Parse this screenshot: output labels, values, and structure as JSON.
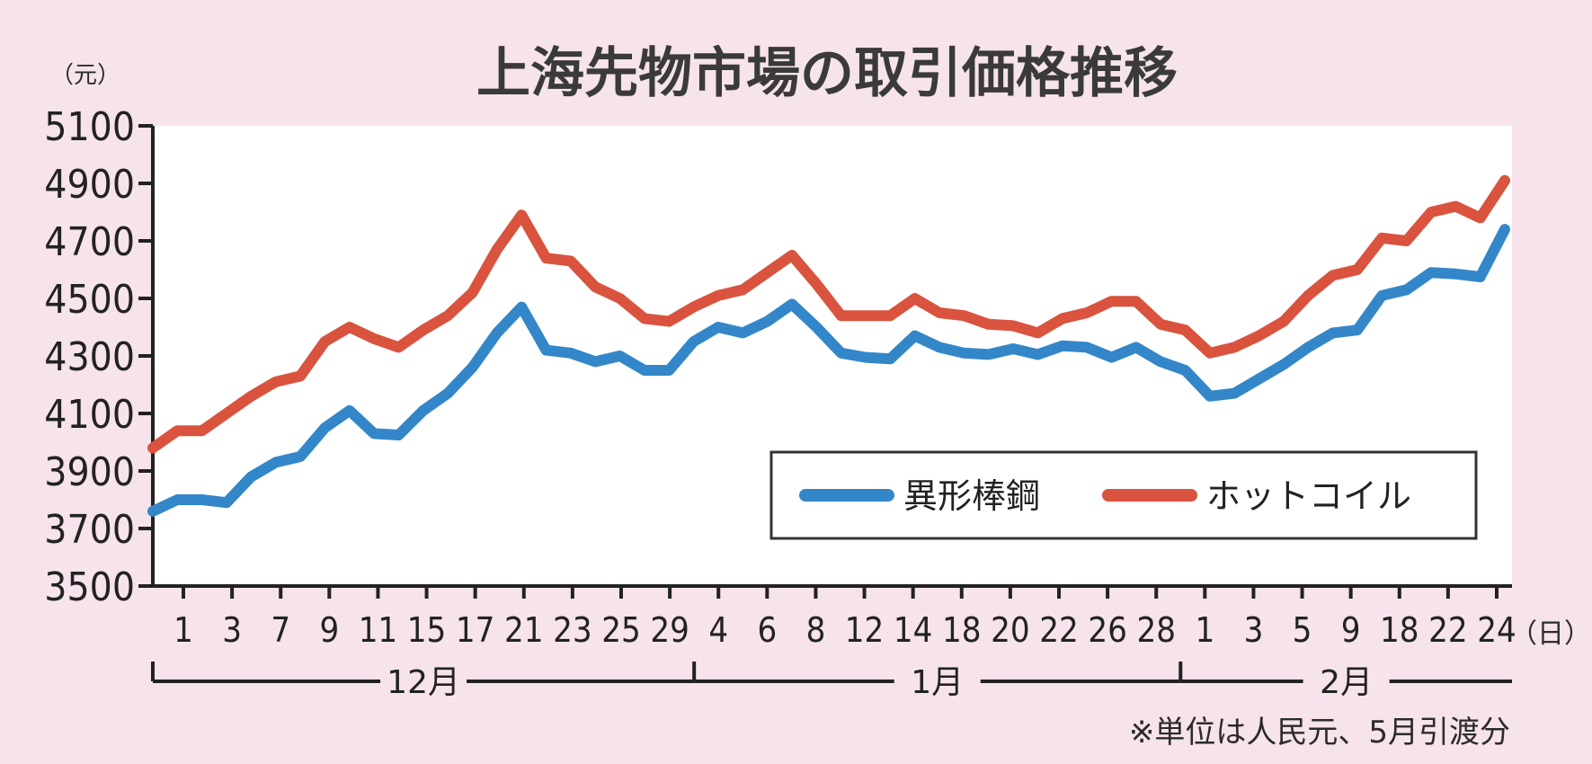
{
  "title": "上海先物市場の取引価格推移",
  "y_unit": "（元）",
  "x_unit": "（日）",
  "note": "※単位は人民元、5月引渡分",
  "colors": {
    "background": "#f6e3ec",
    "plot_background": "#ffffff",
    "series_1": "#3387c8",
    "series_2": "#d9533e",
    "axis": "#222222"
  },
  "legend": {
    "items": [
      "異形棒鋼",
      "ホットコイル"
    ]
  },
  "chart_data": {
    "type": "line",
    "title": "上海先物市場の取引価格推移",
    "ylabel": "（元）",
    "xlabel": "（日）",
    "ylim": [
      3500,
      5100
    ],
    "y_ticks": [
      3500,
      3700,
      3900,
      4100,
      4300,
      4500,
      4700,
      4900,
      5100
    ],
    "x_tick_labels": [
      "1",
      "3",
      "7",
      "9",
      "11",
      "15",
      "17",
      "21",
      "23",
      "25",
      "29",
      "4",
      "6",
      "8",
      "12",
      "14",
      "18",
      "20",
      "22",
      "26",
      "28",
      "1",
      "3",
      "5",
      "9",
      "18",
      "22",
      "24"
    ],
    "months": [
      {
        "label": "12月",
        "ticks": [
          "1",
          "3",
          "7",
          "9",
          "11",
          "15",
          "17",
          "21",
          "23",
          "25",
          "29"
        ]
      },
      {
        "label": "1月",
        "ticks": [
          "4",
          "6",
          "8",
          "12",
          "14",
          "18",
          "20",
          "22",
          "26",
          "28"
        ]
      },
      {
        "label": "2月",
        "ticks": [
          "1",
          "3",
          "5",
          "9",
          "18",
          "22",
          "24"
        ]
      }
    ],
    "legend_position": "bottom-right",
    "grid": false,
    "series": [
      {
        "name": "異形棒鋼",
        "color": "#3387c8",
        "values": [
          3760,
          3800,
          3800,
          3790,
          3880,
          3930,
          3950,
          4050,
          4110,
          4030,
          4025,
          4110,
          4170,
          4260,
          4380,
          4470,
          4320,
          4310,
          4280,
          4300,
          4250,
          4250,
          4350,
          4400,
          4380,
          4420,
          4480,
          4400,
          4310,
          4295,
          4290,
          4370,
          4330,
          4310,
          4305,
          4325,
          4305,
          4335,
          4330,
          4295,
          4330,
          4280,
          4250,
          4160,
          4170,
          4220,
          4270,
          4330,
          4380,
          4390,
          4510,
          4530,
          4590,
          4585,
          4575,
          4740
        ]
      },
      {
        "name": "ホットコイル",
        "color": "#d9533e",
        "values": [
          3980,
          4040,
          4040,
          4100,
          4160,
          4210,
          4230,
          4350,
          4400,
          4360,
          4330,
          4390,
          4440,
          4520,
          4670,
          4790,
          4640,
          4630,
          4540,
          4500,
          4430,
          4420,
          4470,
          4510,
          4530,
          4590,
          4650,
          4550,
          4440,
          4440,
          4440,
          4500,
          4450,
          4440,
          4410,
          4405,
          4380,
          4430,
          4450,
          4490,
          4490,
          4410,
          4390,
          4310,
          4330,
          4370,
          4420,
          4510,
          4580,
          4600,
          4710,
          4700,
          4800,
          4820,
          4780,
          4910
        ]
      }
    ]
  }
}
